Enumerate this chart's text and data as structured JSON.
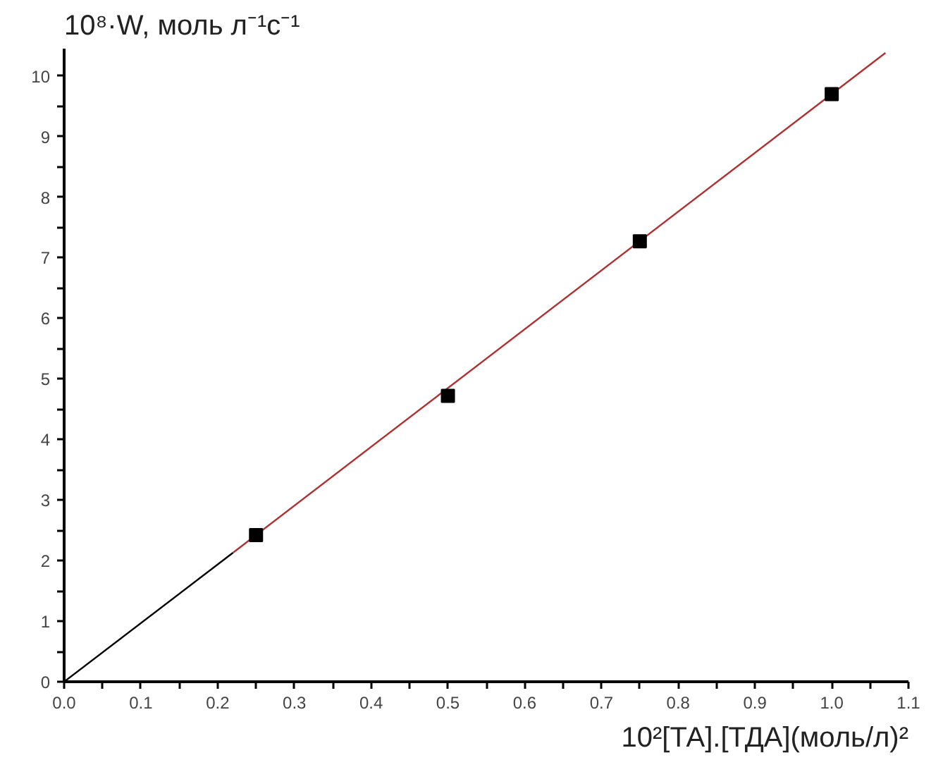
{
  "chart_data": {
    "type": "scatter",
    "ylabel": "10⁸·W, моль л⁻¹с⁻¹",
    "xlabel": "10²[ТА].[ТДА](моль/л)²",
    "grid": false,
    "xlim": [
      0,
      1.1
    ],
    "ylim": [
      0,
      10.45
    ],
    "xticks": [
      {
        "value": 0,
        "label": "0.0"
      },
      {
        "value": 0.05,
        "label": null
      },
      {
        "value": 0.1,
        "label": "0.1"
      },
      {
        "value": 0.15,
        "label": null
      },
      {
        "value": 0.2,
        "label": "0.2"
      },
      {
        "value": 0.25,
        "label": null
      },
      {
        "value": 0.3,
        "label": "0.3"
      },
      {
        "value": 0.35,
        "label": null
      },
      {
        "value": 0.4,
        "label": "0.4"
      },
      {
        "value": 0.45,
        "label": null
      },
      {
        "value": 0.5,
        "label": "0.5"
      },
      {
        "value": 0.55,
        "label": null
      },
      {
        "value": 0.6,
        "label": "0.6"
      },
      {
        "value": 0.65,
        "label": null
      },
      {
        "value": 0.7,
        "label": "0.7"
      },
      {
        "value": 0.75,
        "label": null
      },
      {
        "value": 0.8,
        "label": "0.8"
      },
      {
        "value": 0.85,
        "label": null
      },
      {
        "value": 0.9,
        "label": "0.9"
      },
      {
        "value": 0.95,
        "label": null
      },
      {
        "value": 1.0,
        "label": "1.0"
      },
      {
        "value": 1.05,
        "label": null
      },
      {
        "value": 1.1,
        "label": "1.1"
      }
    ],
    "yticks": [
      0,
      {
        "value": 0.5,
        "label": null
      },
      1,
      {
        "value": 1.5,
        "label": null
      },
      2,
      {
        "value": 2.5,
        "label": null
      },
      3,
      {
        "value": 3.5,
        "label": null
      },
      4,
      {
        "value": 4.5,
        "label": null
      },
      5,
      {
        "value": 5.5,
        "label": null
      },
      6,
      {
        "value": 6.5,
        "label": null
      },
      7,
      {
        "value": 7.5,
        "label": null
      },
      8,
      {
        "value": 8.5,
        "label": null
      },
      9,
      {
        "value": 9.5,
        "label": null
      },
      10
    ],
    "series": [
      {
        "type": "line",
        "color": "#000000",
        "x": [
          0,
          0.22
        ],
        "values": [
          0,
          2.13
        ],
        "marker": "none"
      },
      {
        "type": "line",
        "color": "#b03030",
        "x": [
          0.22,
          1.07
        ],
        "values": [
          2.13,
          10.38
        ],
        "marker": "none"
      },
      {
        "color": "#000000",
        "marker": "square",
        "x": [
          0.25,
          0.5,
          0.75,
          1.0
        ],
        "values": [
          2.42,
          4.72,
          7.27,
          9.7
        ]
      }
    ]
  }
}
